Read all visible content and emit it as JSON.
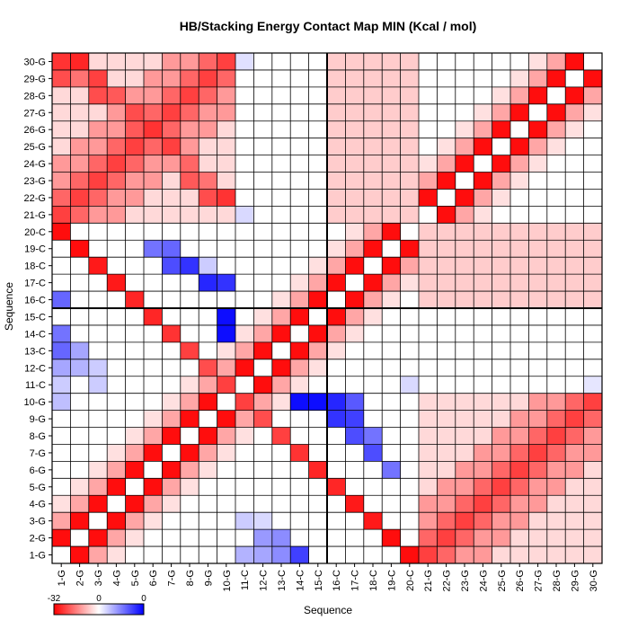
{
  "chart_data": {
    "type": "heatmap",
    "title": "HB/Stacking Energy Contact Map MIN (Kcal / mol)",
    "xlabel": "Sequence",
    "ylabel": "Sequence",
    "labels": [
      "1-G",
      "2-G",
      "3-G",
      "4-G",
      "5-G",
      "6-G",
      "7-G",
      "8-G",
      "9-G",
      "10-G",
      "11-C",
      "12-C",
      "13-C",
      "14-C",
      "15-C",
      "16-C",
      "17-C",
      "18-C",
      "19-C",
      "20-C",
      "21-G",
      "22-G",
      "23-G",
      "24-G",
      "25-G",
      "26-G",
      "27-G",
      "28-G",
      "29-G",
      "30-G"
    ],
    "color_scale": {
      "min": -32,
      "mid": 0,
      "max": 0,
      "min_color": "#ff0000",
      "mid_color": "#ffffff",
      "max_color": "#0000ff",
      "tick_labels": [
        "-32",
        "0",
        "0"
      ]
    },
    "separator_after_index": 15,
    "note_values": "value = cell intensity in [-1,1]; negative = red, positive = blue"
  }
}
